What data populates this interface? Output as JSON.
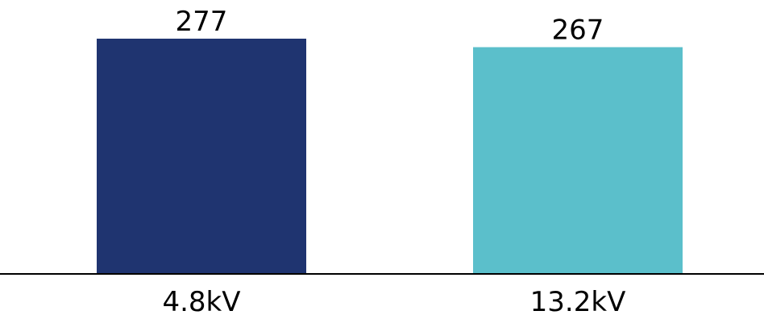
{
  "chart_data": {
    "type": "bar",
    "categories": [
      "4.8kV",
      "13.2kV"
    ],
    "values": [
      277,
      267
    ],
    "data_labels": [
      "277",
      "267"
    ],
    "colors": [
      "#1f3470",
      "#5bbfcb"
    ],
    "title": "",
    "xlabel": "",
    "ylabel": "",
    "ylim": [
      0,
      277
    ],
    "grid": false,
    "legend": "none"
  }
}
